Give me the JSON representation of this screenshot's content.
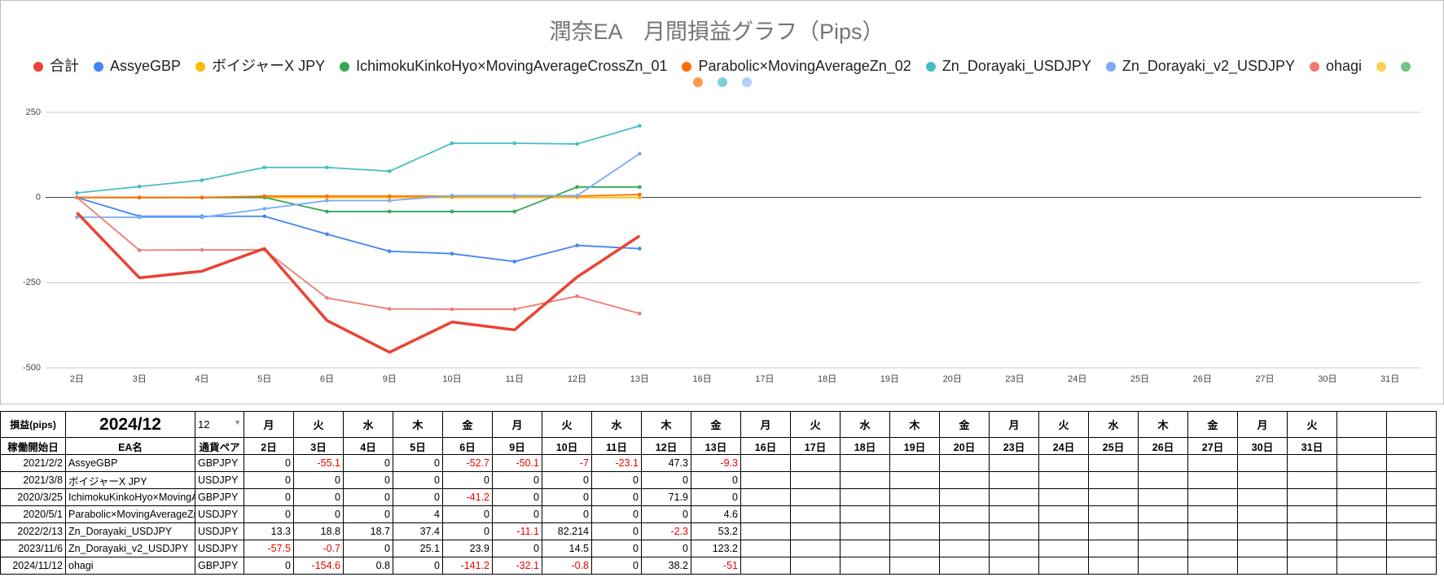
{
  "chart_data": {
    "type": "line",
    "title": "潤奈EA　月間損益グラフ（Pips）",
    "categories": [
      "2日",
      "3日",
      "4日",
      "5日",
      "6日",
      "9日",
      "10日",
      "11日",
      "12日",
      "13日",
      "16日",
      "17日",
      "18日",
      "19日",
      "20日",
      "23日",
      "24日",
      "25日",
      "26日",
      "27日",
      "30日",
      "31日"
    ],
    "series": [
      {
        "name": "AssyeGBP",
        "color": "#4285f4",
        "values": [
          0,
          -55.1,
          -55.1,
          -55.1,
          -107.8,
          -157.9,
          -164.9,
          -188,
          -140.7,
          -150,
          null,
          null,
          null,
          null,
          null,
          null,
          null,
          null,
          null,
          null,
          null,
          null
        ]
      },
      {
        "name": "ボイジャーX JPY",
        "color": "#fbbc04",
        "values": [
          0,
          0,
          0,
          0,
          0,
          0,
          0,
          0,
          0,
          0,
          null,
          null,
          null,
          null,
          null,
          null,
          null,
          null,
          null,
          null,
          null,
          null
        ]
      },
      {
        "name": "IchimokuKinkoHyo×MovingAverageCrossZn_01",
        "color": "#34a853",
        "values": [
          0,
          0,
          0,
          0,
          -41.2,
          -41.2,
          -41.2,
          -41.2,
          30.7,
          30.7,
          null,
          null,
          null,
          null,
          null,
          null,
          null,
          null,
          null,
          null,
          null,
          null
        ]
      },
      {
        "name": "Parabolic×MovingAverageZn_02",
        "color": "#ff6d01",
        "values": [
          0,
          0,
          0,
          4,
          4,
          4,
          4,
          4,
          4,
          8.6,
          null,
          null,
          null,
          null,
          null,
          null,
          null,
          null,
          null,
          null,
          null,
          null
        ]
      },
      {
        "name": "Zn_Dorayaki_USDJPY",
        "color": "#46bdc6",
        "values": [
          13.3,
          32.1,
          50.8,
          88.2,
          88.2,
          77.1,
          159.314,
          159.314,
          157.014,
          210.214,
          null,
          null,
          null,
          null,
          null,
          null,
          null,
          null,
          null,
          null,
          null,
          null
        ]
      },
      {
        "name": "Zn_Dorayaki_v2_USDJPY",
        "color": "#7baaf7",
        "values": [
          -57.5,
          -58.2,
          -58.2,
          -33.1,
          -9.2,
          -9.2,
          5.3,
          5.3,
          5.3,
          128.5,
          null,
          null,
          null,
          null,
          null,
          null,
          null,
          null,
          null,
          null,
          null,
          null
        ]
      },
      {
        "name": "ohagi",
        "color": "#f07b72",
        "values": [
          0,
          -154.6,
          -153.8,
          -153.8,
          -295,
          -327.1,
          -327.9,
          -327.9,
          -289.7,
          -340.7,
          null,
          null,
          null,
          null,
          null,
          null,
          null,
          null,
          null,
          null,
          null,
          null
        ]
      },
      {
        "name": "合計",
        "color": "#ea4335",
        "legend_first": true,
        "values": [
          -44.2,
          -235.8,
          -216.3,
          -149.8,
          -361,
          -454.3,
          -365.386,
          -388.486,
          -233.386,
          -112.686,
          null,
          null,
          null,
          null,
          null,
          null,
          null,
          null,
          null,
          null,
          null,
          null
        ]
      }
    ],
    "unnamed_series_colors": [
      "#fcd04f",
      "#71c287",
      "#ff994d",
      "#7ed1d7",
      "#b3cefb"
    ],
    "ylim": [
      -500,
      250
    ],
    "yticks": [
      -500,
      -250,
      0,
      250
    ],
    "grid": true
  },
  "table": {
    "title": "損益(pips)",
    "month": "2024/12",
    "month_select": "12",
    "weekdays": [
      "月",
      "火",
      "水",
      "木",
      "金",
      "月",
      "火",
      "水",
      "木",
      "金",
      "月",
      "火",
      "水",
      "木",
      "金",
      "月",
      "火",
      "水",
      "木",
      "金",
      "月",
      "火"
    ],
    "headers": [
      "稼働開始日",
      "EA名",
      "通貨ペア"
    ],
    "rows": [
      {
        "start": "2021/2/2",
        "name": "AssyeGBP",
        "pair": "GBPJPY",
        "values": [
          0,
          -55.1,
          0,
          0,
          -52.7,
          -50.1,
          -7,
          -23.1,
          47.3,
          -9.3
        ]
      },
      {
        "start": "2021/3/8",
        "name": "ボイジャーX JPY",
        "pair": "USDJPY",
        "values": [
          0,
          0,
          0,
          0,
          0,
          0,
          0,
          0,
          0,
          0
        ]
      },
      {
        "start": "2020/3/25",
        "name": "IchimokuKinkoHyo×MovingAverageCrossZn_01",
        "pair": "GBPJPY",
        "values": [
          0,
          0,
          0,
          0,
          -41.2,
          0,
          0,
          0,
          71.9,
          0
        ]
      },
      {
        "start": "2020/5/1",
        "name": "Parabolic×MovingAverageZn_02",
        "pair": "USDJPY",
        "values": [
          0,
          0,
          0,
          4,
          0,
          0,
          0,
          0,
          0,
          4.6
        ]
      },
      {
        "start": "2022/2/13",
        "name": "Zn_Dorayaki_USDJPY",
        "pair": "USDJPY",
        "values": [
          13.3,
          18.8,
          18.7,
          37.4,
          0,
          -11.1,
          82.214,
          0,
          -2.3,
          53.2
        ]
      },
      {
        "start": "2023/11/6",
        "name": "Zn_Dorayaki_v2_USDJPY",
        "pair": "USDJPY",
        "values": [
          -57.5,
          -0.7,
          0,
          25.1,
          23.9,
          0,
          14.5,
          0,
          0,
          123.2
        ]
      },
      {
        "start": "2024/11/12",
        "name": "ohagi",
        "pair": "GBPJPY",
        "values": [
          0,
          -154.6,
          0.8,
          0,
          -141.2,
          -32.1,
          -0.8,
          0,
          38.2,
          -51
        ]
      }
    ]
  }
}
